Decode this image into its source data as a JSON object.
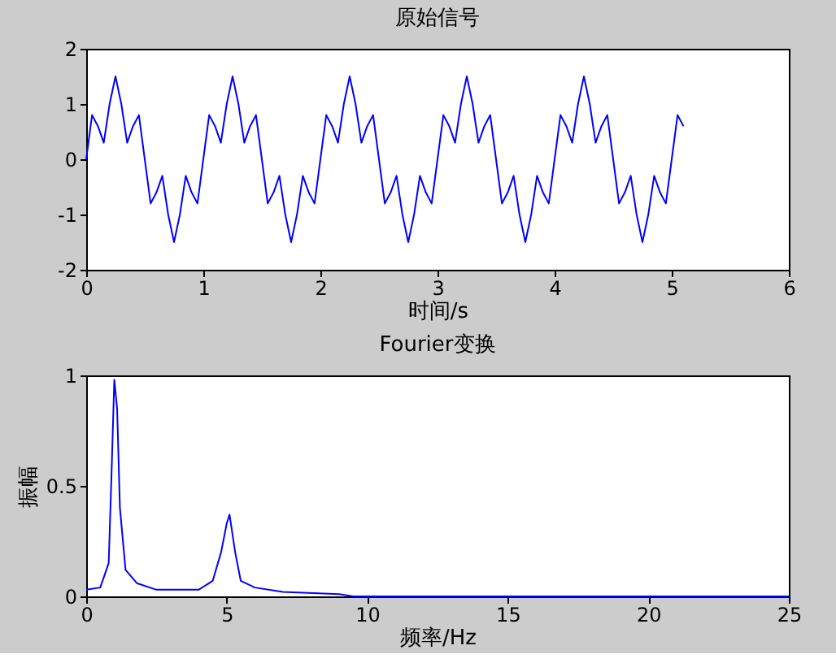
{
  "chart_data": [
    {
      "type": "line",
      "title": "原始信号",
      "xlabel": "时间/s",
      "color": "#0000ff",
      "xlim": [
        0,
        6
      ],
      "xticks": [
        0,
        1,
        2,
        3,
        4,
        5,
        6
      ],
      "ylim": [
        -2,
        2
      ],
      "yticks": [
        -2,
        -1,
        0,
        1,
        2
      ],
      "grid": false,
      "x": [
        0,
        0.05,
        0.1,
        0.15,
        0.2,
        0.25,
        0.3,
        0.35,
        0.4,
        0.45,
        0.5,
        0.55,
        0.6,
        0.65,
        0.7,
        0.75,
        0.8,
        0.85,
        0.9,
        0.95,
        1,
        1.05,
        1.1,
        1.15,
        1.2,
        1.25,
        1.3,
        1.35,
        1.4,
        1.45,
        1.5,
        1.55,
        1.6,
        1.65,
        1.7,
        1.75,
        1.8,
        1.85,
        1.9,
        1.95,
        2,
        2.05,
        2.1,
        2.15,
        2.2,
        2.25,
        2.3,
        2.35,
        2.4,
        2.45,
        2.5,
        2.55,
        2.6,
        2.65,
        2.7,
        2.75,
        2.8,
        2.85,
        2.9,
        2.95,
        3,
        3.05,
        3.1,
        3.15,
        3.2,
        3.25,
        3.3,
        3.35,
        3.4,
        3.45,
        3.5,
        3.55,
        3.6,
        3.65,
        3.7,
        3.75,
        3.8,
        3.85,
        3.9,
        3.95,
        4,
        4.05,
        4.1,
        4.15,
        4.2,
        4.25,
        4.3,
        4.35,
        4.4,
        4.45,
        4.5,
        4.55,
        4.6,
        4.65,
        4.7,
        4.75,
        4.8,
        4.85,
        4.9,
        4.95,
        5,
        5.05,
        5.1
      ],
      "values": [
        0,
        0.8,
        0.6,
        0.3,
        1.0,
        1.5,
        1.0,
        0.3,
        0.6,
        0.8,
        0,
        -0.8,
        -0.6,
        -0.3,
        -1.0,
        -1.5,
        -1.0,
        -0.3,
        -0.6,
        -0.8,
        0,
        0.8,
        0.6,
        0.3,
        1.0,
        1.5,
        1.0,
        0.3,
        0.6,
        0.8,
        0,
        -0.8,
        -0.6,
        -0.3,
        -1.0,
        -1.5,
        -1.0,
        -0.3,
        -0.6,
        -0.8,
        0,
        0.8,
        0.6,
        0.3,
        1.0,
        1.5,
        1.0,
        0.3,
        0.6,
        0.8,
        0,
        -0.8,
        -0.6,
        -0.3,
        -1.0,
        -1.5,
        -1.0,
        -0.3,
        -0.6,
        -0.8,
        0,
        0.8,
        0.6,
        0.3,
        1.0,
        1.5,
        1.0,
        0.3,
        0.6,
        0.8,
        0,
        -0.8,
        -0.6,
        -0.3,
        -1.0,
        -1.5,
        -1.0,
        -0.3,
        -0.6,
        -0.8,
        0,
        0.8,
        0.6,
        0.3,
        1.0,
        1.5,
        1.0,
        0.3,
        0.6,
        0.8,
        0,
        -0.8,
        -0.6,
        -0.3,
        -1.0,
        -1.5,
        -1.0,
        -0.3,
        -0.6,
        -0.8,
        0,
        0.8,
        0.6
      ]
    },
    {
      "type": "line",
      "title": "Fourier变换",
      "xlabel": "频率/Hz",
      "ylabel": "振幅",
      "color": "#0000ff",
      "xlim": [
        0,
        25
      ],
      "xticks": [
        0,
        5,
        10,
        15,
        20,
        25
      ],
      "ylim": [
        0,
        1
      ],
      "yticks": [
        0,
        0.5,
        1
      ],
      "grid": false,
      "x": [
        0,
        0.5,
        0.8,
        0.9,
        1.0,
        1.1,
        1.2,
        1.4,
        1.8,
        2.5,
        4,
        4.5,
        4.8,
        5.0,
        5.1,
        5.3,
        5.5,
        6,
        7,
        9,
        9.5,
        15,
        20,
        25
      ],
      "values": [
        0.03,
        0.04,
        0.15,
        0.55,
        0.98,
        0.85,
        0.4,
        0.12,
        0.06,
        0.03,
        0.03,
        0.07,
        0.2,
        0.33,
        0.37,
        0.2,
        0.07,
        0.04,
        0.02,
        0.01,
        0,
        0,
        0,
        0
      ]
    }
  ]
}
